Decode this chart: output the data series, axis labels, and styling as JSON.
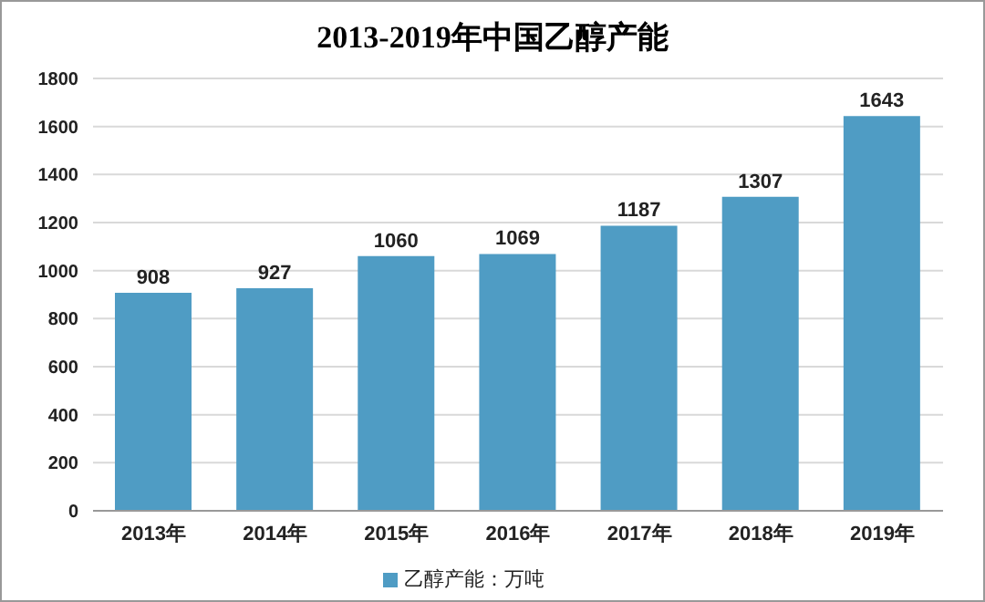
{
  "chart_data": {
    "type": "bar",
    "title": "2013-2019年中国乙醇产能",
    "categories": [
      "2013年",
      "2014年",
      "2015年",
      "2016年",
      "2017年",
      "2018年",
      "2019年"
    ],
    "series": [
      {
        "name": "乙醇产能：万吨",
        "color": "#4f9cc4",
        "values": [
          908,
          927,
          1060,
          1069,
          1187,
          1307,
          1643
        ]
      }
    ],
    "ylim": [
      0,
      1800
    ],
    "yticks": [
      0,
      200,
      400,
      600,
      800,
      1000,
      1200,
      1400,
      1600,
      1800
    ],
    "grid": "y",
    "legend": "bottom",
    "data_labels": true
  }
}
